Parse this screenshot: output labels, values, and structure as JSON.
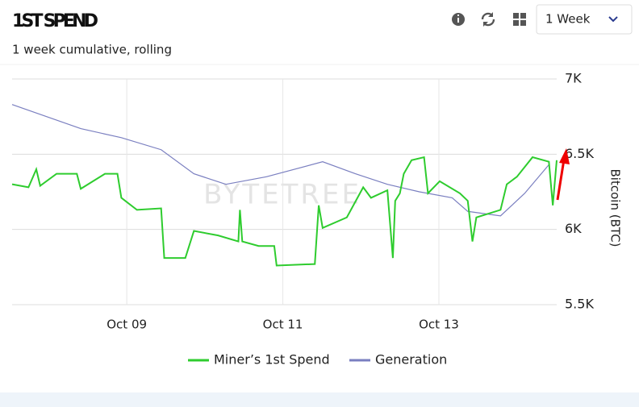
{
  "header": {
    "title": "1ST SPEND",
    "subtitle": "1 week cumulative, rolling",
    "period": "1 Week"
  },
  "watermark": "BYTETREE",
  "chart_data": {
    "type": "line",
    "y_label": "Bitcoin (BTC)",
    "xlim": [
      7.53,
      14.51
    ],
    "xticks": [
      {
        "value": 9,
        "label": "Oct 09"
      },
      {
        "value": 11,
        "label": "Oct 11"
      },
      {
        "value": 13,
        "label": "Oct 13"
      }
    ],
    "ylim": [
      5500,
      7000
    ],
    "yticks": [
      {
        "value": 5500,
        "label": "5.5K"
      },
      {
        "value": 6000,
        "label": "6K"
      },
      {
        "value": 6500,
        "label": "6.5K"
      },
      {
        "value": 7000,
        "label": "7K"
      }
    ],
    "grid": true,
    "series": [
      {
        "name": "Miner’s 1st Spend",
        "color": "#2ecc2e",
        "x": [
          7.53,
          7.74,
          7.84,
          7.89,
          8.1,
          8.36,
          8.41,
          8.72,
          8.88,
          8.93,
          9.13,
          9.44,
          9.48,
          9.75,
          9.86,
          10.17,
          10.43,
          10.45,
          10.48,
          10.69,
          10.89,
          10.92,
          11.41,
          11.46,
          11.51,
          11.82,
          12.03,
          12.13,
          12.34,
          12.41,
          12.44,
          12.5,
          12.55,
          12.65,
          12.81,
          12.86,
          13.01,
          13.27,
          13.37,
          13.43,
          13.48,
          13.79,
          13.87,
          14.0,
          14.2,
          14.41,
          14.46,
          14.51
        ],
        "values": [
          6300,
          6280,
          6400,
          6290,
          6370,
          6370,
          6270,
          6370,
          6370,
          6210,
          6130,
          6140,
          5810,
          5810,
          5990,
          5960,
          5920,
          6130,
          5920,
          5890,
          5890,
          5760,
          5770,
          6160,
          6010,
          6080,
          6280,
          6210,
          6260,
          5810,
          6190,
          6240,
          6370,
          6460,
          6480,
          6240,
          6320,
          6240,
          6190,
          5920,
          6080,
          6130,
          6300,
          6350,
          6480,
          6450,
          6160,
          6460
        ]
      },
      {
        "name": "Generation",
        "color": "#7a7fc0",
        "x": [
          7.53,
          8.41,
          8.93,
          9.44,
          9.86,
          10.27,
          10.79,
          11.51,
          11.93,
          12.34,
          12.75,
          13.17,
          13.37,
          13.79,
          14.1,
          14.41
        ],
        "values": [
          6830,
          6670,
          6610,
          6530,
          6370,
          6300,
          6350,
          6450,
          6370,
          6300,
          6250,
          6210,
          6120,
          6090,
          6240,
          6430
        ]
      }
    ]
  }
}
